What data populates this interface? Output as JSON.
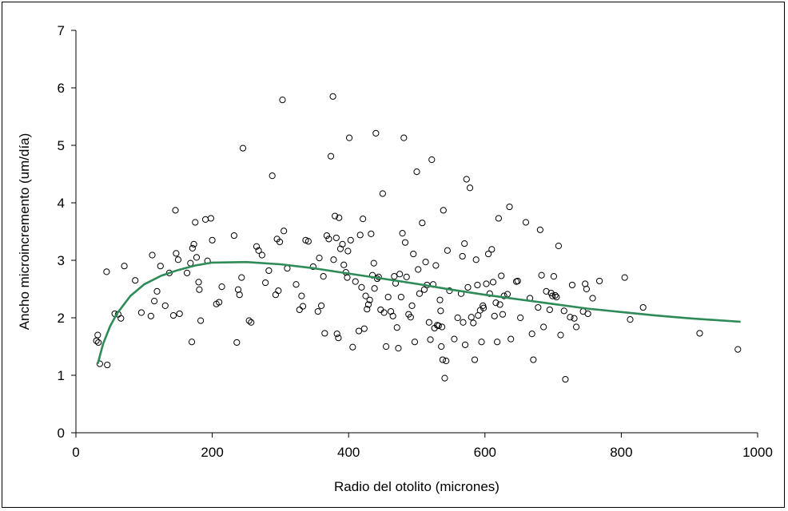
{
  "chart_data": {
    "type": "scatter",
    "title": "",
    "xlabel": "Radio del otolito (micrones)",
    "ylabel": "Ancho microincremento (um/día)",
    "xlim": [
      0,
      1000
    ],
    "ylim": [
      0,
      7
    ],
    "xticks": [
      "0",
      "200",
      "400",
      "600",
      "800",
      "1000"
    ],
    "yticks": [
      "0",
      "1",
      "2",
      "3",
      "4",
      "5",
      "6",
      "7"
    ],
    "grid": false,
    "legend": "none",
    "colors": {
      "points": "#000000",
      "trend": "#2e8b57",
      "axis": "#000000"
    },
    "points": [
      [
        30,
        1.6
      ],
      [
        32,
        1.7
      ],
      [
        33,
        1.57
      ],
      [
        35,
        1.2
      ],
      [
        45,
        2.8
      ],
      [
        46,
        1.18
      ],
      [
        57,
        2.07
      ],
      [
        62,
        2.06
      ],
      [
        66,
        1.99
      ],
      [
        71,
        2.9
      ],
      [
        87,
        2.65
      ],
      [
        96,
        2.09
      ],
      [
        110,
        2.03
      ],
      [
        112,
        3.09
      ],
      [
        115,
        2.29
      ],
      [
        119,
        2.46
      ],
      [
        124,
        2.9
      ],
      [
        131,
        2.21
      ],
      [
        137,
        2.78
      ],
      [
        143,
        2.04
      ],
      [
        146,
        3.87
      ],
      [
        147,
        3.12
      ],
      [
        150,
        3.01
      ],
      [
        152,
        2.07
      ],
      [
        163,
        2.78
      ],
      [
        168,
        2.95
      ],
      [
        170,
        1.58
      ],
      [
        171,
        3.21
      ],
      [
        173,
        3.28
      ],
      [
        175,
        3.66
      ],
      [
        177,
        3.05
      ],
      [
        180,
        2.62
      ],
      [
        181,
        2.49
      ],
      [
        183,
        1.95
      ],
      [
        190,
        3.71
      ],
      [
        193,
        2.99
      ],
      [
        198,
        3.73
      ],
      [
        200,
        3.35
      ],
      [
        206,
        2.24
      ],
      [
        210,
        2.27
      ],
      [
        214,
        2.54
      ],
      [
        232,
        3.43
      ],
      [
        236,
        1.57
      ],
      [
        238,
        2.49
      ],
      [
        240,
        2.4
      ],
      [
        243,
        2.7
      ],
      [
        245,
        4.95
      ],
      [
        254,
        1.95
      ],
      [
        257,
        1.92
      ],
      [
        265,
        3.24
      ],
      [
        268,
        3.17
      ],
      [
        273,
        3.09
      ],
      [
        278,
        2.61
      ],
      [
        283,
        2.82
      ],
      [
        288,
        4.47
      ],
      [
        293,
        2.4
      ],
      [
        295,
        3.37
      ],
      [
        297,
        2.47
      ],
      [
        299,
        3.32
      ],
      [
        303,
        5.79
      ],
      [
        305,
        3.51
      ],
      [
        310,
        2.86
      ],
      [
        323,
        2.58
      ],
      [
        328,
        2.14
      ],
      [
        331,
        2.38
      ],
      [
        333,
        2.2
      ],
      [
        337,
        3.35
      ],
      [
        341,
        3.33
      ],
      [
        348,
        2.89
      ],
      [
        355,
        2.11
      ],
      [
        357,
        3.04
      ],
      [
        360,
        2.21
      ],
      [
        363,
        2.72
      ],
      [
        365,
        1.73
      ],
      [
        368,
        3.43
      ],
      [
        371,
        3.37
      ],
      [
        374,
        4.81
      ],
      [
        377,
        5.85
      ],
      [
        378,
        3.01
      ],
      [
        380,
        3.77
      ],
      [
        382,
        3.39
      ],
      [
        383,
        1.72
      ],
      [
        385,
        1.65
      ],
      [
        386,
        3.74
      ],
      [
        388,
        3.2
      ],
      [
        391,
        3.28
      ],
      [
        393,
        2.92
      ],
      [
        396,
        2.79
      ],
      [
        398,
        2.7
      ],
      [
        399,
        3.16
      ],
      [
        401,
        5.13
      ],
      [
        403,
        3.35
      ],
      [
        406,
        1.49
      ],
      [
        410,
        2.63
      ],
      [
        415,
        1.77
      ],
      [
        417,
        3.44
      ],
      [
        419,
        2.53
      ],
      [
        421,
        3.72
      ],
      [
        423,
        1.81
      ],
      [
        425,
        2.38
      ],
      [
        427,
        2.15
      ],
      [
        429,
        2.23
      ],
      [
        431,
        2.31
      ],
      [
        433,
        3.46
      ],
      [
        435,
        2.74
      ],
      [
        437,
        2.95
      ],
      [
        438,
        2.51
      ],
      [
        440,
        5.21
      ],
      [
        442,
        2.68
      ],
      [
        444,
        2.71
      ],
      [
        447,
        2.14
      ],
      [
        450,
        4.16
      ],
      [
        452,
        2.09
      ],
      [
        455,
        1.5
      ],
      [
        458,
        2.36
      ],
      [
        462,
        2.11
      ],
      [
        465,
        2.03
      ],
      [
        467,
        2.72
      ],
      [
        469,
        2.6
      ],
      [
        471,
        1.83
      ],
      [
        473,
        1.47
      ],
      [
        475,
        2.76
      ],
      [
        477,
        2.36
      ],
      [
        479,
        3.47
      ],
      [
        481,
        5.13
      ],
      [
        483,
        3.31
      ],
      [
        485,
        2.71
      ],
      [
        488,
        2.06
      ],
      [
        491,
        2.01
      ],
      [
        493,
        2.21
      ],
      [
        495,
        3.11
      ],
      [
        497,
        1.58
      ],
      [
        500,
        4.54
      ],
      [
        502,
        2.84
      ],
      [
        504,
        2.42
      ],
      [
        508,
        3.65
      ],
      [
        511,
        2.49
      ],
      [
        513,
        2.97
      ],
      [
        515,
        2.57
      ],
      [
        518,
        1.92
      ],
      [
        520,
        1.62
      ],
      [
        522,
        4.75
      ],
      [
        524,
        2.58
      ],
      [
        526,
        1.82
      ],
      [
        528,
        2.91
      ],
      [
        530,
        1.87
      ],
      [
        532,
        1.86
      ],
      [
        534,
        2.31
      ],
      [
        535,
        2.12
      ],
      [
        536,
        1.5
      ],
      [
        537,
        1.84
      ],
      [
        538,
        1.27
      ],
      [
        539,
        3.87
      ],
      [
        541,
        0.95
      ],
      [
        543,
        1.25
      ],
      [
        545,
        3.17
      ],
      [
        548,
        2.47
      ],
      [
        555,
        1.63
      ],
      [
        560,
        2.0
      ],
      [
        565,
        2.42
      ],
      [
        567,
        3.07
      ],
      [
        568,
        1.92
      ],
      [
        570,
        3.29
      ],
      [
        571,
        1.53
      ],
      [
        573,
        4.41
      ],
      [
        575,
        2.53
      ],
      [
        578,
        4.26
      ],
      [
        580,
        2.01
      ],
      [
        583,
        1.91
      ],
      [
        585,
        1.27
      ],
      [
        587,
        3.01
      ],
      [
        589,
        2.57
      ],
      [
        590,
        2.04
      ],
      [
        593,
        2.13
      ],
      [
        595,
        1.58
      ],
      [
        597,
        2.21
      ],
      [
        598,
        2.17
      ],
      [
        602,
        2.59
      ],
      [
        605,
        3.11
      ],
      [
        607,
        2.42
      ],
      [
        610,
        3.19
      ],
      [
        612,
        2.62
      ],
      [
        614,
        2.03
      ],
      [
        616,
        2.26
      ],
      [
        618,
        1.58
      ],
      [
        620,
        3.73
      ],
      [
        622,
        2.23
      ],
      [
        624,
        2.73
      ],
      [
        626,
        2.06
      ],
      [
        628,
        2.38
      ],
      [
        633,
        2.41
      ],
      [
        636,
        3.93
      ],
      [
        638,
        1.63
      ],
      [
        646,
        2.63
      ],
      [
        648,
        2.64
      ],
      [
        652,
        2.0
      ],
      [
        660,
        3.66
      ],
      [
        666,
        2.34
      ],
      [
        669,
        1.72
      ],
      [
        671,
        1.27
      ],
      [
        678,
        2.18
      ],
      [
        681,
        3.53
      ],
      [
        683,
        2.74
      ],
      [
        686,
        1.84
      ],
      [
        690,
        2.46
      ],
      [
        695,
        2.14
      ],
      [
        697,
        2.43
      ],
      [
        699,
        2.38
      ],
      [
        701,
        2.72
      ],
      [
        703,
        2.39
      ],
      [
        705,
        2.36
      ],
      [
        708,
        3.25
      ],
      [
        711,
        1.7
      ],
      [
        716,
        2.12
      ],
      [
        718,
        0.93
      ],
      [
        725,
        2.01
      ],
      [
        728,
        2.57
      ],
      [
        731,
        1.99
      ],
      [
        734,
        1.84
      ],
      [
        744,
        2.11
      ],
      [
        747,
        2.59
      ],
      [
        749,
        2.5
      ],
      [
        751,
        2.07
      ],
      [
        758,
        2.34
      ],
      [
        768,
        2.64
      ],
      [
        805,
        2.7
      ],
      [
        813,
        1.97
      ],
      [
        832,
        2.18
      ],
      [
        915,
        1.73
      ],
      [
        971,
        1.45
      ]
    ],
    "trend": [
      [
        32,
        1.2
      ],
      [
        40,
        1.55
      ],
      [
        50,
        1.85
      ],
      [
        60,
        2.07
      ],
      [
        80,
        2.38
      ],
      [
        100,
        2.58
      ],
      [
        125,
        2.73
      ],
      [
        150,
        2.83
      ],
      [
        175,
        2.91
      ],
      [
        200,
        2.96
      ],
      [
        250,
        2.97
      ],
      [
        300,
        2.93
      ],
      [
        350,
        2.86
      ],
      [
        400,
        2.77
      ],
      [
        450,
        2.68
      ],
      [
        500,
        2.59
      ],
      [
        550,
        2.49
      ],
      [
        600,
        2.4
      ],
      [
        650,
        2.32
      ],
      [
        700,
        2.24
      ],
      [
        750,
        2.16
      ],
      [
        800,
        2.1
      ],
      [
        850,
        2.04
      ],
      [
        900,
        1.99
      ],
      [
        975,
        1.93
      ]
    ]
  }
}
